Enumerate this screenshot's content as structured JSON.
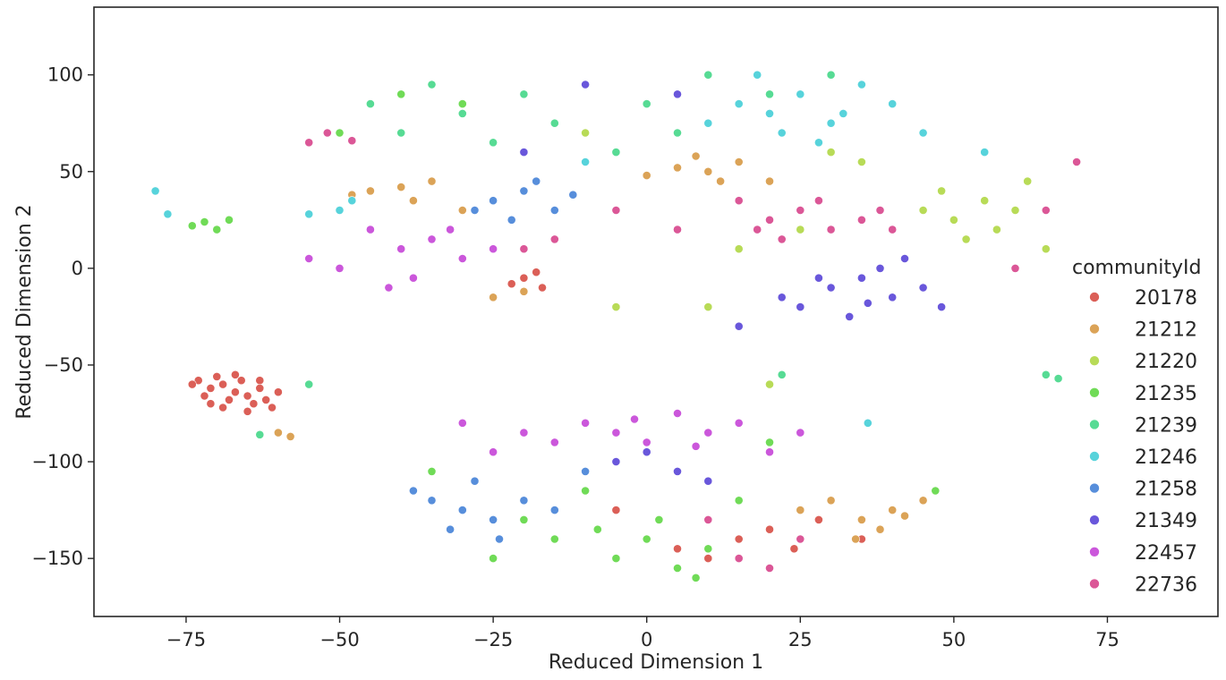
{
  "chart_data": {
    "type": "scatter",
    "title": "",
    "xlabel": "Reduced Dimension 1",
    "ylabel": "Reduced Dimension 2",
    "xlim": [
      -90,
      93
    ],
    "ylim": [
      -180,
      135
    ],
    "xticks": [
      -75,
      -50,
      -25,
      0,
      25,
      50,
      75
    ],
    "yticks": [
      100,
      50,
      0,
      -50,
      -100,
      -150
    ],
    "xtick_labels": [
      "−75",
      "−50",
      "−25",
      "0",
      "25",
      "50",
      "75"
    ],
    "ytick_labels": [
      "100",
      "50",
      "0",
      "−50",
      "−100",
      "−150"
    ],
    "grid": false,
    "legend": {
      "title": "communityId",
      "placement": "center-right"
    },
    "series": [
      {
        "name": "20178",
        "color": "#db5f57",
        "points": [
          [
            -73,
            -58
          ],
          [
            -71,
            -62
          ],
          [
            -69,
            -60
          ],
          [
            -67,
            -64
          ],
          [
            -65,
            -66
          ],
          [
            -63,
            -62
          ],
          [
            -70,
            -56
          ],
          [
            -66,
            -58
          ],
          [
            -64,
            -70
          ],
          [
            -68,
            -68
          ],
          [
            -72,
            -66
          ],
          [
            -62,
            -68
          ],
          [
            -74,
            -60
          ],
          [
            -60,
            -64
          ],
          [
            -67,
            -55
          ],
          [
            -71,
            -70
          ],
          [
            -65,
            -74
          ],
          [
            -69,
            -72
          ],
          [
            -63,
            -58
          ],
          [
            -61,
            -72
          ],
          [
            -20,
            -5
          ],
          [
            -18,
            -2
          ],
          [
            -22,
            -8
          ],
          [
            -17,
            -10
          ],
          [
            15,
            -140
          ],
          [
            20,
            -135
          ],
          [
            5,
            -145
          ],
          [
            28,
            -130
          ],
          [
            10,
            -150
          ],
          [
            -5,
            -125
          ],
          [
            35,
            -140
          ],
          [
            24,
            -145
          ]
        ]
      },
      {
        "name": "21212",
        "color": "#dba357",
        "points": [
          [
            -45,
            40
          ],
          [
            -40,
            42
          ],
          [
            -38,
            35
          ],
          [
            -35,
            45
          ],
          [
            -48,
            38
          ],
          [
            5,
            52
          ],
          [
            10,
            50
          ],
          [
            15,
            55
          ],
          [
            0,
            48
          ],
          [
            20,
            45
          ],
          [
            -25,
            -15
          ],
          [
            -20,
            -12
          ],
          [
            35,
            -130
          ],
          [
            40,
            -125
          ],
          [
            38,
            -135
          ],
          [
            42,
            -128
          ],
          [
            30,
            -120
          ],
          [
            45,
            -120
          ],
          [
            34,
            -140
          ],
          [
            25,
            -125
          ],
          [
            -60,
            -85
          ],
          [
            -58,
            -87
          ],
          [
            12,
            45
          ],
          [
            8,
            58
          ],
          [
            -30,
            30
          ]
        ]
      },
      {
        "name": "21220",
        "color": "#b8db57",
        "points": [
          [
            50,
            25
          ],
          [
            55,
            35
          ],
          [
            60,
            30
          ],
          [
            48,
            40
          ],
          [
            57,
            20
          ],
          [
            62,
            45
          ],
          [
            52,
            15
          ],
          [
            45,
            30
          ],
          [
            30,
            60
          ],
          [
            35,
            55
          ],
          [
            -10,
            70
          ],
          [
            5,
            20
          ],
          [
            10,
            -20
          ],
          [
            15,
            10
          ],
          [
            -5,
            -20
          ],
          [
            20,
            -60
          ],
          [
            25,
            20
          ],
          [
            65,
            10
          ]
        ]
      },
      {
        "name": "21235",
        "color": "#70db57",
        "points": [
          [
            -72,
            24
          ],
          [
            -70,
            20
          ],
          [
            -74,
            22
          ],
          [
            -68,
            25
          ],
          [
            -15,
            -140
          ],
          [
            -5,
            -150
          ],
          [
            5,
            -155
          ],
          [
            0,
            -140
          ],
          [
            10,
            -145
          ],
          [
            -20,
            -130
          ],
          [
            -10,
            -115
          ],
          [
            8,
            -160
          ],
          [
            -25,
            -150
          ],
          [
            15,
            -120
          ],
          [
            -35,
            -105
          ],
          [
            2,
            -130
          ],
          [
            -8,
            -135
          ],
          [
            20,
            -90
          ],
          [
            -40,
            90
          ],
          [
            -30,
            85
          ],
          [
            -50,
            70
          ],
          [
            47,
            -115
          ]
        ]
      },
      {
        "name": "21239",
        "color": "#57db94",
        "points": [
          [
            -30,
            80
          ],
          [
            -20,
            90
          ],
          [
            -10,
            95
          ],
          [
            0,
            85
          ],
          [
            -40,
            70
          ],
          [
            -25,
            65
          ],
          [
            10,
            100
          ],
          [
            -35,
            95
          ],
          [
            -15,
            75
          ],
          [
            5,
            70
          ],
          [
            20,
            90
          ],
          [
            -45,
            85
          ],
          [
            65,
            -55
          ],
          [
            67,
            -57
          ],
          [
            22,
            -55
          ],
          [
            -63,
            -86
          ],
          [
            -55,
            -60
          ],
          [
            -5,
            60
          ],
          [
            30,
            100
          ]
        ]
      },
      {
        "name": "21246",
        "color": "#57d3db",
        "points": [
          [
            20,
            80
          ],
          [
            25,
            90
          ],
          [
            30,
            75
          ],
          [
            15,
            85
          ],
          [
            35,
            95
          ],
          [
            22,
            70
          ],
          [
            28,
            65
          ],
          [
            40,
            85
          ],
          [
            10,
            75
          ],
          [
            18,
            100
          ],
          [
            32,
            80
          ],
          [
            45,
            70
          ],
          [
            -50,
            30
          ],
          [
            -48,
            35
          ],
          [
            -55,
            28
          ],
          [
            -80,
            40
          ],
          [
            -78,
            28
          ],
          [
            36,
            -80
          ],
          [
            55,
            60
          ],
          [
            -10,
            55
          ]
        ]
      },
      {
        "name": "21258",
        "color": "#578edb",
        "points": [
          [
            -25,
            35
          ],
          [
            -20,
            40
          ],
          [
            -15,
            30
          ],
          [
            -22,
            25
          ],
          [
            -18,
            45
          ],
          [
            -28,
            30
          ],
          [
            -12,
            38
          ],
          [
            -30,
            -125
          ],
          [
            -25,
            -130
          ],
          [
            -35,
            -120
          ],
          [
            -28,
            -110
          ],
          [
            -32,
            -135
          ],
          [
            -20,
            -120
          ],
          [
            -10,
            -105
          ],
          [
            -5,
            -100
          ],
          [
            -38,
            -115
          ],
          [
            -24,
            -140
          ],
          [
            -15,
            -125
          ]
        ]
      },
      {
        "name": "21349",
        "color": "#6957db",
        "points": [
          [
            30,
            -10
          ],
          [
            35,
            -5
          ],
          [
            40,
            -15
          ],
          [
            25,
            -20
          ],
          [
            38,
            0
          ],
          [
            45,
            -10
          ],
          [
            28,
            -5
          ],
          [
            42,
            5
          ],
          [
            33,
            -25
          ],
          [
            48,
            -20
          ],
          [
            22,
            -15
          ],
          [
            36,
            -18
          ],
          [
            -5,
            -100
          ],
          [
            0,
            -95
          ],
          [
            5,
            -105
          ],
          [
            10,
            -110
          ],
          [
            -10,
            95
          ],
          [
            5,
            90
          ],
          [
            -20,
            60
          ],
          [
            15,
            -30
          ]
        ]
      },
      {
        "name": "22457",
        "color": "#cb57db",
        "points": [
          [
            -40,
            10
          ],
          [
            -35,
            15
          ],
          [
            -30,
            5
          ],
          [
            -45,
            20
          ],
          [
            -50,
            0
          ],
          [
            -25,
            10
          ],
          [
            -38,
            -5
          ],
          [
            -32,
            20
          ],
          [
            -42,
            -10
          ],
          [
            -55,
            5
          ],
          [
            -10,
            -80
          ],
          [
            -5,
            -85
          ],
          [
            0,
            -90
          ],
          [
            5,
            -75
          ],
          [
            10,
            -85
          ],
          [
            15,
            -80
          ],
          [
            -15,
            -90
          ],
          [
            -20,
            -85
          ],
          [
            20,
            -95
          ],
          [
            -2,
            -78
          ],
          [
            -30,
            -80
          ],
          [
            25,
            -85
          ],
          [
            -25,
            -95
          ],
          [
            8,
            -92
          ]
        ]
      },
      {
        "name": "22736",
        "color": "#db5797",
        "points": [
          [
            20,
            25
          ],
          [
            25,
            30
          ],
          [
            30,
            20
          ],
          [
            35,
            25
          ],
          [
            15,
            35
          ],
          [
            22,
            15
          ],
          [
            28,
            35
          ],
          [
            38,
            30
          ],
          [
            18,
            20
          ],
          [
            40,
            20
          ],
          [
            -20,
            10
          ],
          [
            -15,
            15
          ],
          [
            -55,
            65
          ],
          [
            -52,
            70
          ],
          [
            -48,
            66
          ],
          [
            20,
            -155
          ],
          [
            15,
            -150
          ],
          [
            25,
            -140
          ],
          [
            10,
            -130
          ],
          [
            60,
            0
          ],
          [
            65,
            30
          ],
          [
            70,
            55
          ],
          [
            5,
            20
          ],
          [
            -5,
            30
          ]
        ]
      }
    ]
  }
}
